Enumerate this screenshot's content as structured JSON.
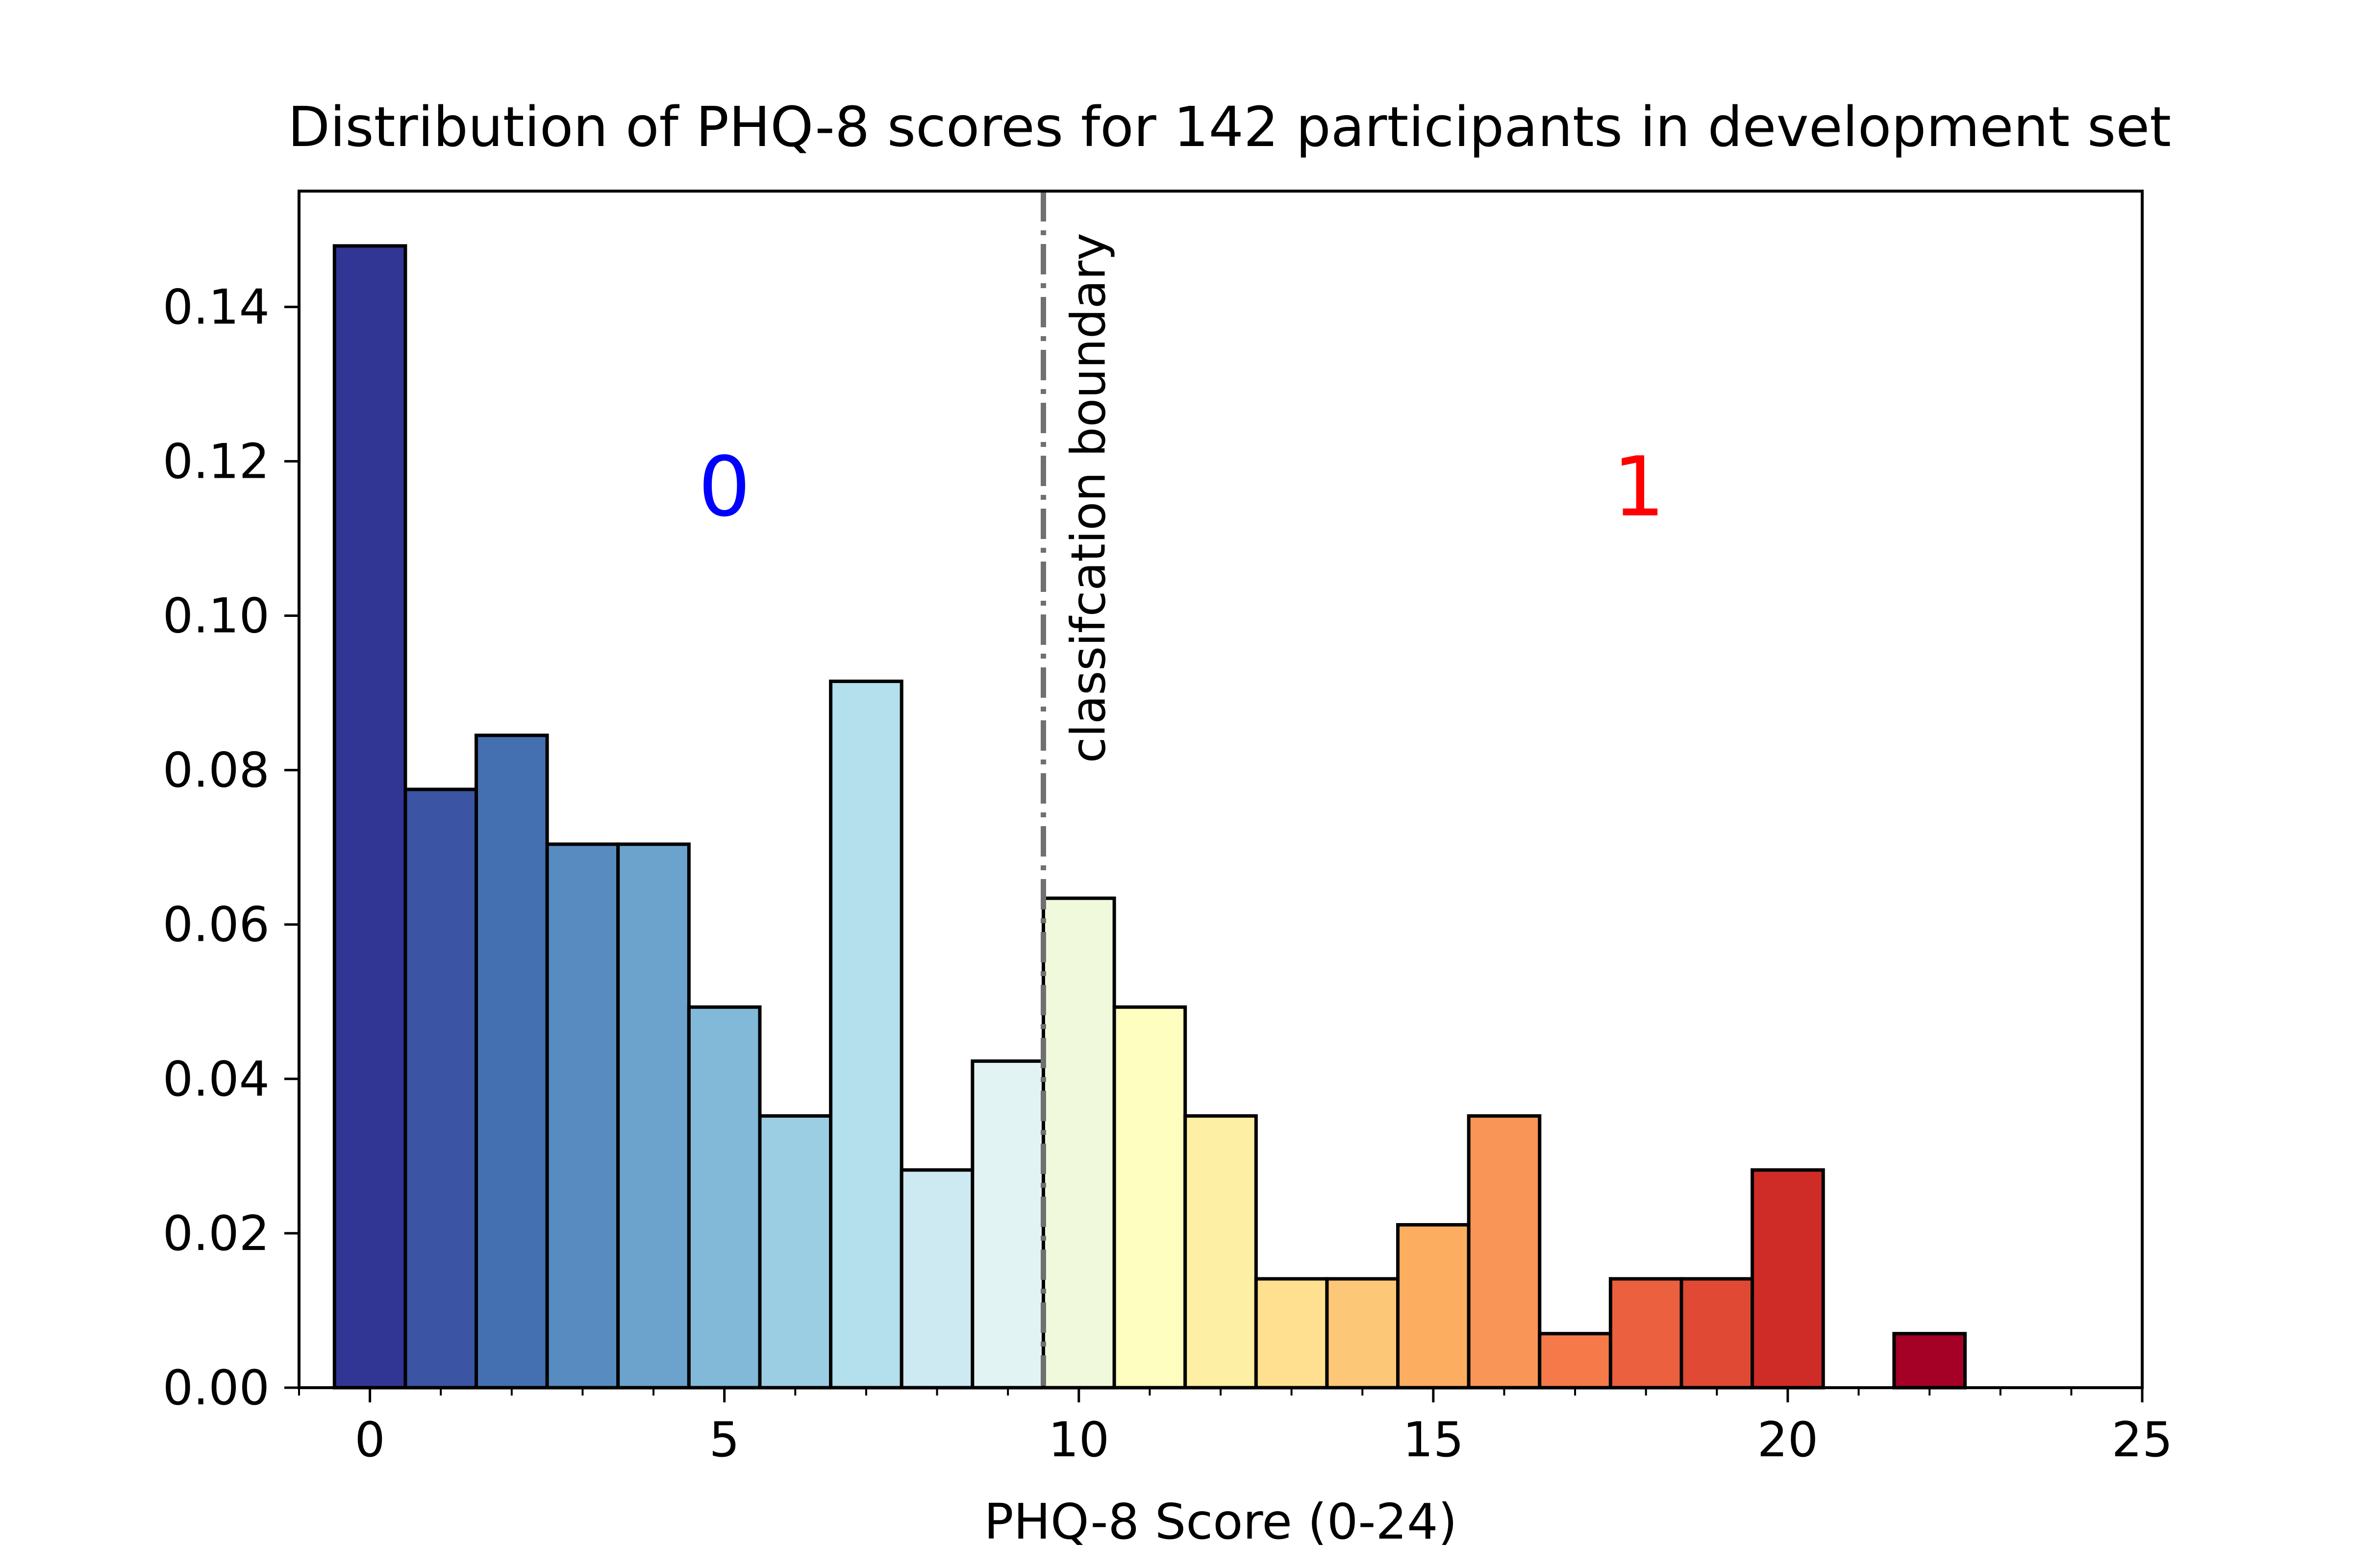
{
  "chart_data": {
    "type": "bar",
    "title": "Distribution of PHQ-8 scores for 142 participants in development set",
    "xlabel": "PHQ-8 Score (0-24)",
    "ylabel": "",
    "xlim": [
      -1,
      25
    ],
    "ylim": [
      0,
      0.155
    ],
    "x": [
      0,
      1,
      2,
      3,
      4,
      5,
      6,
      7,
      8,
      9,
      10,
      11,
      12,
      13,
      14,
      15,
      16,
      17,
      18,
      19,
      20,
      21,
      22,
      23,
      24
    ],
    "values": [
      0.1479,
      0.0775,
      0.0845,
      0.0704,
      0.0704,
      0.0493,
      0.0352,
      0.0915,
      0.0282,
      0.0423,
      0.0634,
      0.0493,
      0.0352,
      0.0141,
      0.0141,
      0.0211,
      0.0352,
      0.007,
      0.0141,
      0.0141,
      0.0282,
      0,
      0.007,
      0,
      0
    ],
    "colors": [
      "#313695",
      "#3b54a3",
      "#4470b1",
      "#588cc0",
      "#6ca3cc",
      "#83b9d8",
      "#9ccee3",
      "#b4dfec",
      "#cde9f2",
      "#e2f3f4",
      "#f0f9dc",
      "#fefec0",
      "#fdefa3",
      "#fee090",
      "#fdc778",
      "#fcad60",
      "#f99556",
      "#f67a49",
      "#eb603f",
      "#e04a34",
      "#cf2c27",
      "#b3141f",
      "#a50026",
      "#a50026",
      "#a50026"
    ],
    "xticks": [
      "0",
      "5",
      "10",
      "15",
      "20",
      "25"
    ],
    "yticks": [
      "0.00",
      "0.02",
      "0.04",
      "0.06",
      "0.08",
      "0.10",
      "0.12",
      "0.14"
    ],
    "boundary": {
      "x": 9.5,
      "label": "classifcation boundary",
      "color": "#707070"
    },
    "annotations": [
      {
        "text": "0",
        "x": 5.0,
        "y": 0.113,
        "color": "#0000ff"
      },
      {
        "text": "1",
        "x": 17.9,
        "y": 0.113,
        "color": "#ff0000"
      }
    ]
  }
}
